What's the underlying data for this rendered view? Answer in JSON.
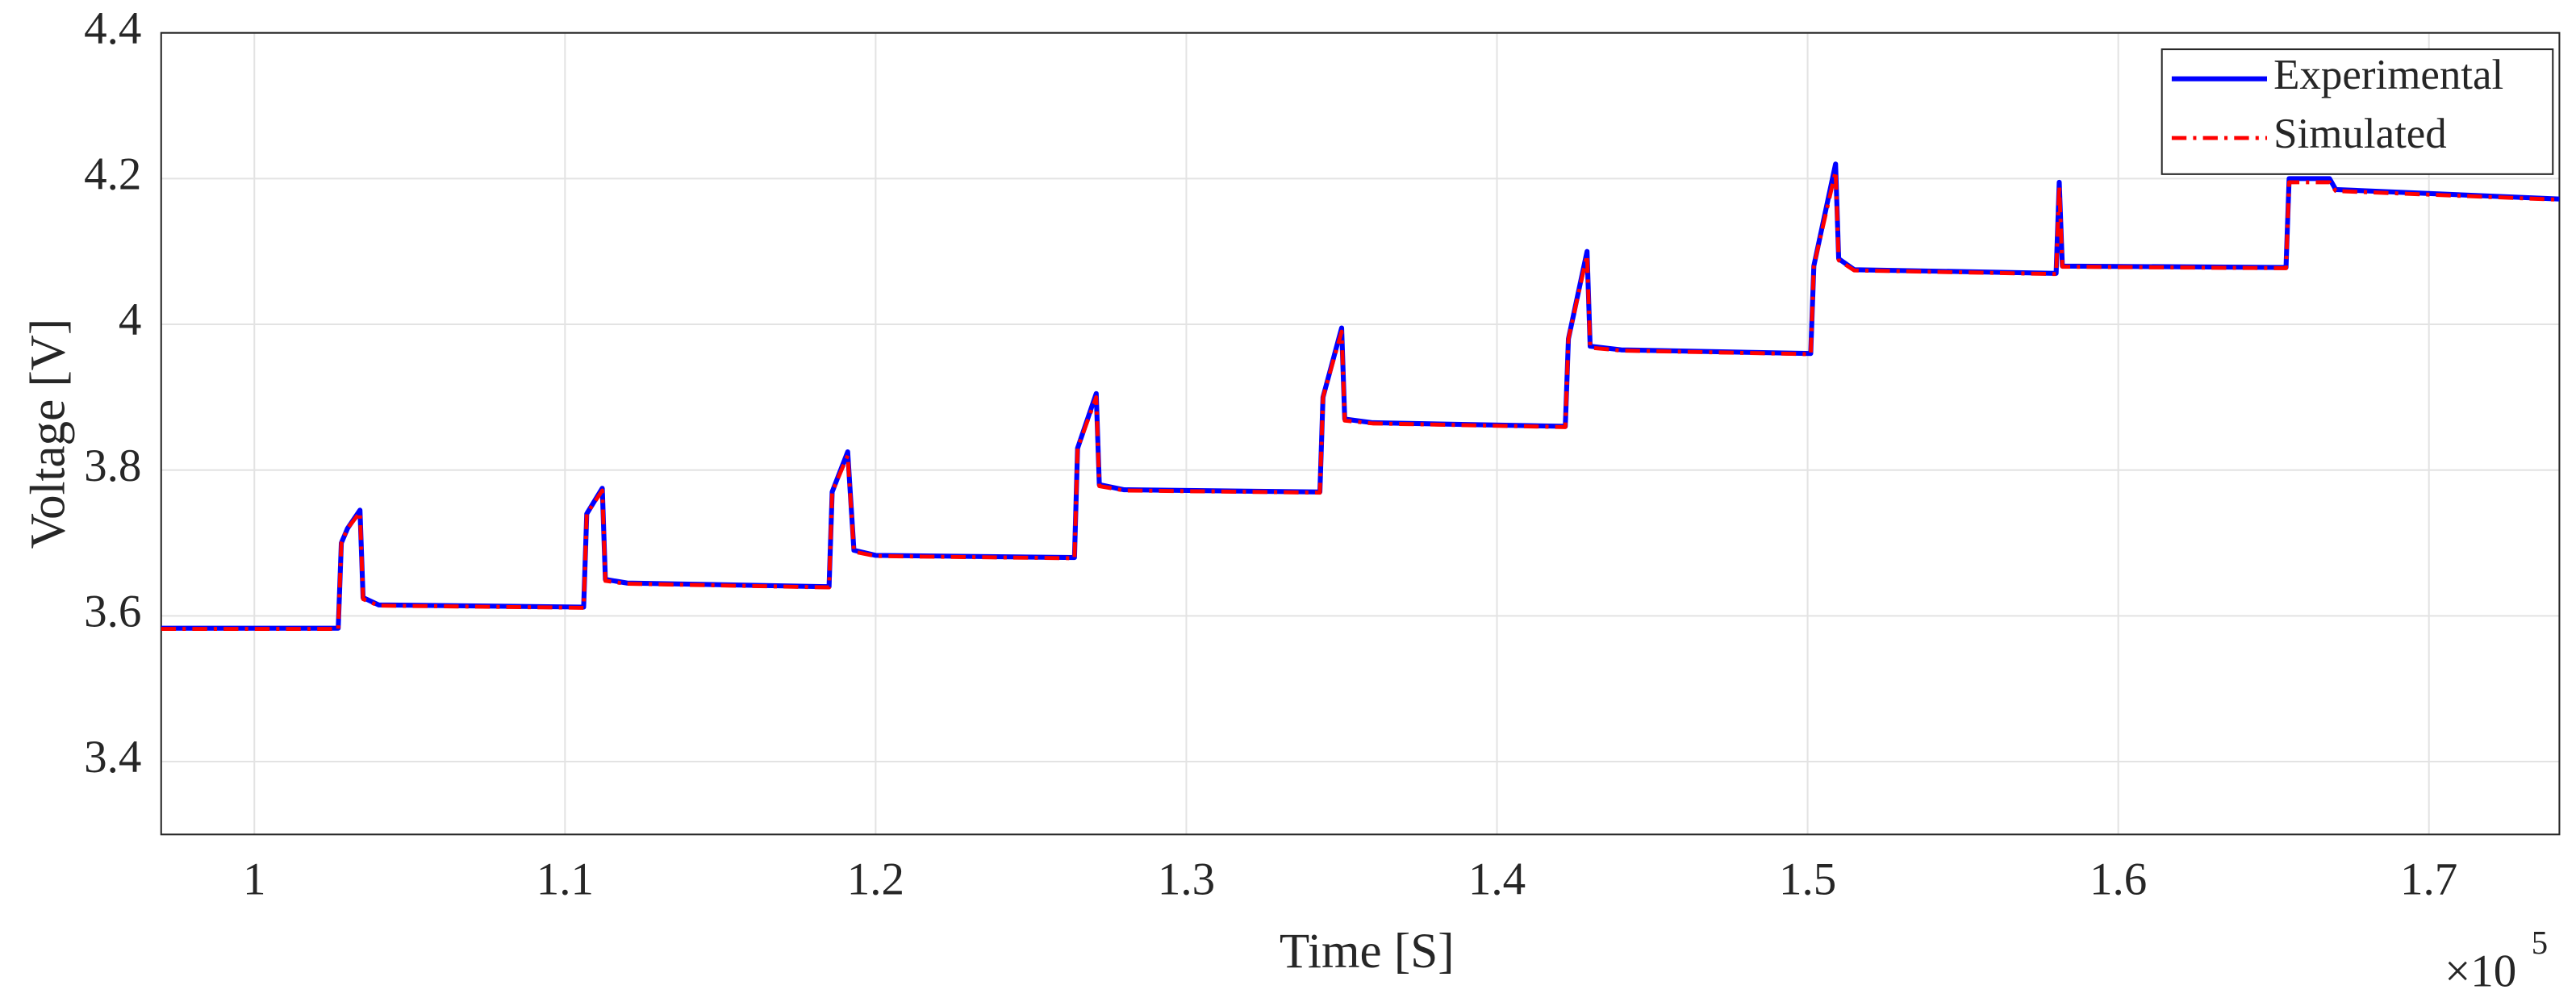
{
  "chart_data": {
    "type": "line",
    "xlabel": "Time [S]",
    "ylabel": "Voltage [V]",
    "x_multiplier": "×10",
    "x_multiplier_exponent": "5",
    "x": [
      0.97,
      1.027,
      1.028,
      1.03,
      1.034,
      1.035,
      1.04,
      1.106,
      1.107,
      1.112,
      1.113,
      1.12,
      1.185,
      1.186,
      1.191,
      1.193,
      1.2,
      1.264,
      1.265,
      1.271,
      1.272,
      1.28,
      1.343,
      1.344,
      1.35,
      1.351,
      1.36,
      1.422,
      1.423,
      1.429,
      1.43,
      1.44,
      1.501,
      1.502,
      1.509,
      1.51,
      1.515,
      1.58,
      1.581,
      1.582,
      1.654,
      1.655,
      1.668,
      1.67,
      1.742
    ],
    "series": [
      {
        "name": "Experimental",
        "color": "#0000ff",
        "style": "solid",
        "values": [
          3.583,
          3.583,
          3.7,
          3.72,
          3.745,
          3.625,
          3.615,
          3.612,
          3.74,
          3.775,
          3.65,
          3.645,
          3.64,
          3.77,
          3.825,
          3.69,
          3.683,
          3.68,
          3.83,
          3.905,
          3.78,
          3.773,
          3.77,
          3.9,
          3.995,
          3.87,
          3.865,
          3.86,
          3.98,
          4.1,
          3.97,
          3.965,
          3.96,
          4.08,
          4.22,
          4.09,
          4.075,
          4.07,
          4.195,
          4.08,
          4.078,
          4.2,
          4.2,
          4.185,
          4.172
        ]
      },
      {
        "name": "Simulated",
        "color": "#ff0000",
        "style": "dashdot",
        "values": [
          3.582,
          3.582,
          3.7,
          3.72,
          3.742,
          3.623,
          3.614,
          3.611,
          3.74,
          3.772,
          3.648,
          3.644,
          3.639,
          3.77,
          3.82,
          3.688,
          3.682,
          3.679,
          3.83,
          3.9,
          3.778,
          3.772,
          3.769,
          3.9,
          3.99,
          3.868,
          3.864,
          3.859,
          3.98,
          4.095,
          3.968,
          3.964,
          3.959,
          4.08,
          4.21,
          4.088,
          4.074,
          4.069,
          4.19,
          4.079,
          4.077,
          4.195,
          4.195,
          4.183,
          4.171
        ]
      }
    ],
    "xlim": [
      0.97,
      1.742
    ],
    "xticks": [
      1,
      1.1,
      1.2,
      1.3,
      1.4,
      1.5,
      1.6,
      1.7
    ],
    "ylim": [
      3.3,
      4.4
    ],
    "yticks": [
      3.4,
      3.6,
      3.8,
      4,
      4.2,
      4.4
    ],
    "grid": true,
    "legend": "top-right"
  }
}
